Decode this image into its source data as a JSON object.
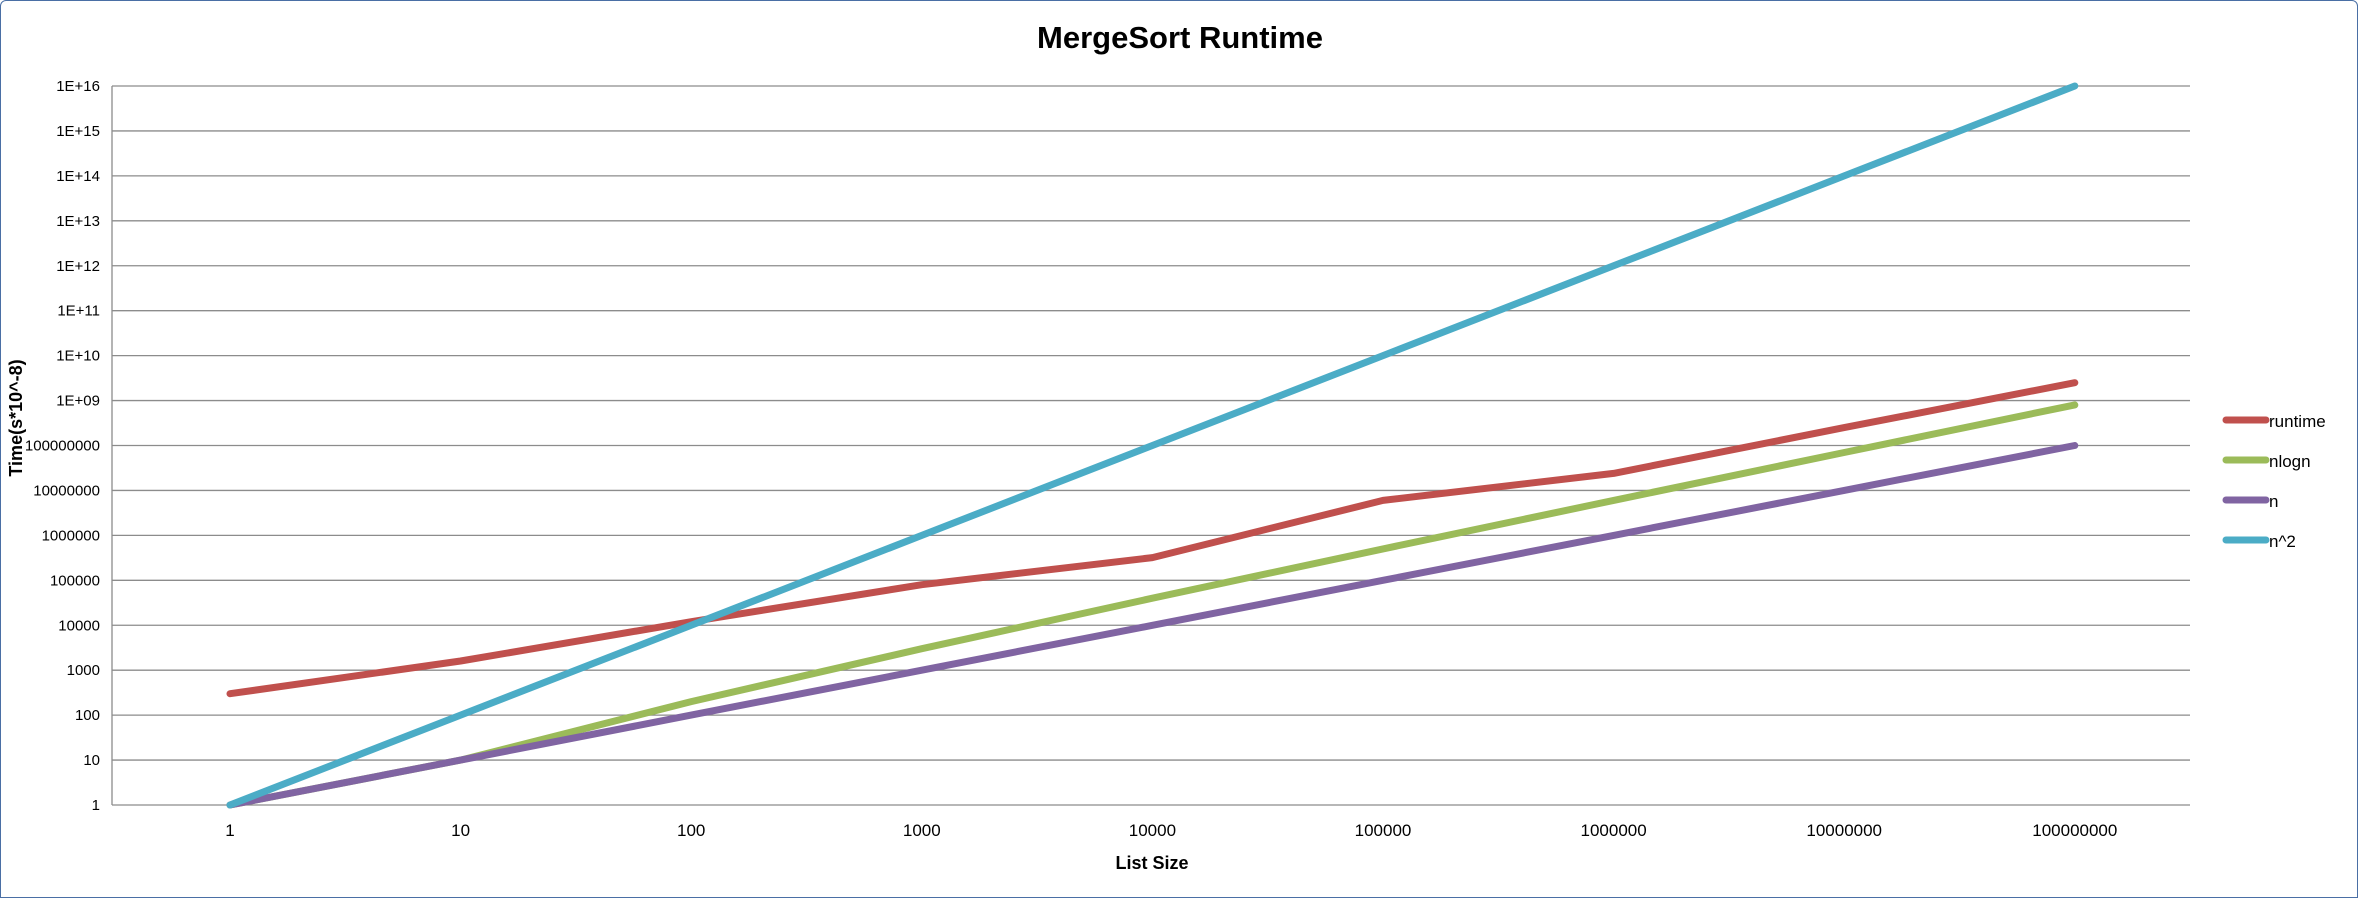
{
  "chart_data": {
    "type": "line",
    "title": "MergeSort Runtime",
    "xlabel": "List Size",
    "ylabel": "Time(s*10^-8)",
    "x_scale": "log",
    "y_scale": "log",
    "ylim": [
      1,
      1e+16
    ],
    "grid": true,
    "legend_position": "right",
    "x": [
      1,
      10,
      100,
      1000,
      10000,
      100000,
      1000000,
      10000000,
      100000000
    ],
    "x_tick_labels": [
      "1",
      "10",
      "100",
      "1000",
      "10000",
      "100000",
      "1000000",
      "10000000",
      "100000000"
    ],
    "y_tick_labels": [
      "1",
      "10",
      "100",
      "1000",
      "10000",
      "100000",
      "1000000",
      "10000000",
      "100000000",
      "1E+09",
      "1E+10",
      "1E+11",
      "1E+12",
      "1E+13",
      "1E+14",
      "1E+15",
      "1E+16"
    ],
    "series": [
      {
        "name": "runtime",
        "color": "#c0504d",
        "values": [
          300,
          1600,
          12000,
          80000,
          320000,
          6000000,
          24000000,
          250000000,
          2500000000
        ]
      },
      {
        "name": "nlogn",
        "color": "#9bbb59",
        "values": [
          1,
          10,
          200,
          3000,
          40000,
          500000,
          6000000,
          70000000,
          800000000
        ]
      },
      {
        "name": "n",
        "color": "#8064a2",
        "values": [
          1,
          10,
          100,
          1000,
          10000,
          100000,
          1000000,
          10000000,
          100000000
        ]
      },
      {
        "name": "n^2",
        "color": "#4bacc6",
        "values": [
          1,
          100,
          10000,
          1000000,
          100000000,
          10000000000,
          1000000000000,
          100000000000000,
          10000000000000000
        ]
      }
    ]
  }
}
